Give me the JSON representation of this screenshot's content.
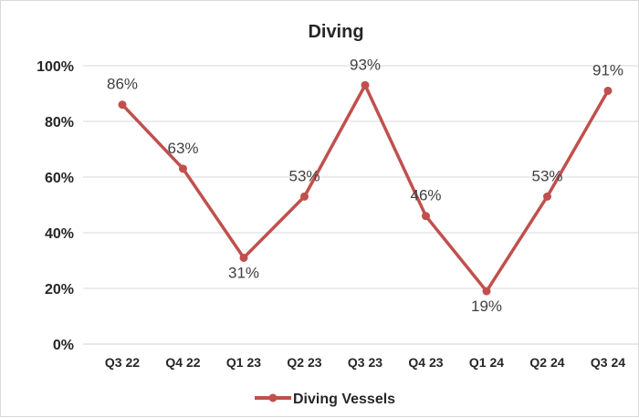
{
  "chart_data": {
    "type": "line",
    "title": "Diving",
    "categories": [
      "Q3 22",
      "Q4 22",
      "Q1 23",
      "Q2 23",
      "Q3 23",
      "Q4 23",
      "Q1 24",
      "Q2 24",
      "Q3 24"
    ],
    "series": [
      {
        "name": "Diving Vessels",
        "values": [
          86,
          63,
          31,
          53,
          93,
          46,
          19,
          53,
          91
        ],
        "data_labels": [
          "86%",
          "63%",
          "31%",
          "53%",
          "93%",
          "46%",
          "19%",
          "53%",
          "91%"
        ],
        "color": "#c0504d"
      }
    ],
    "y_ticks": [
      "0%",
      "20%",
      "40%",
      "60%",
      "80%",
      "100%"
    ],
    "ylim": [
      0,
      100
    ],
    "grid": true,
    "legend_position": "bottom"
  }
}
